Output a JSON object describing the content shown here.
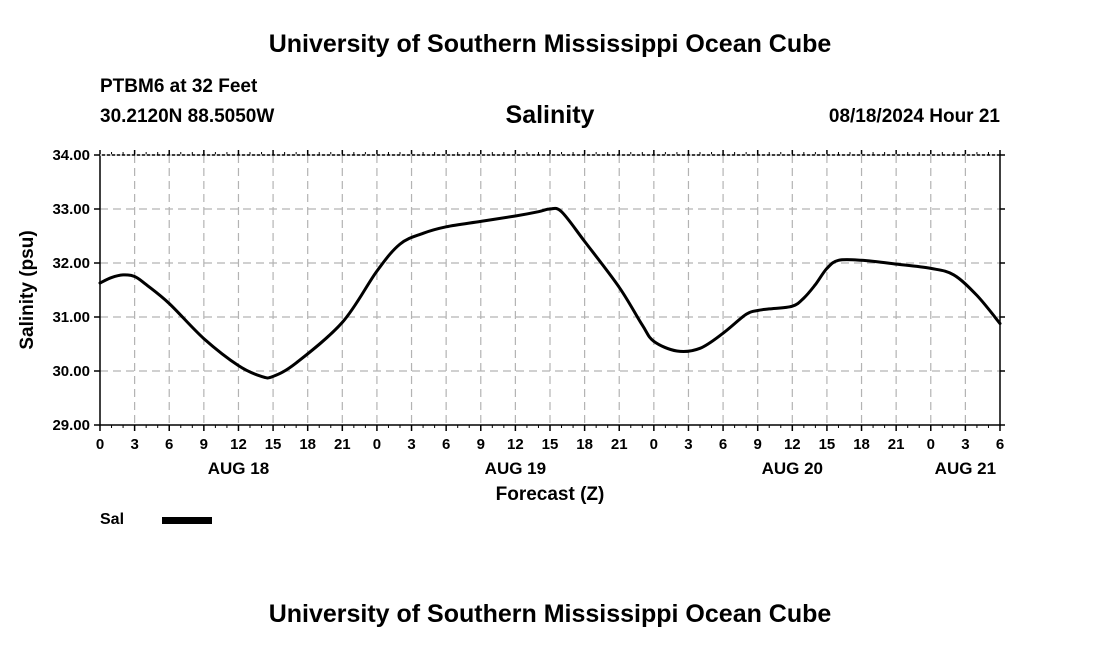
{
  "header": {
    "title": "University of Southern Mississippi Ocean Cube",
    "station": "PTBM6 at 32 Feet",
    "coordinates": "30.2120N  88.5050W",
    "date_time": "08/18/2024 Hour 21"
  },
  "footer": {
    "title": "University of Southern Mississippi Ocean Cube"
  },
  "legend": {
    "label": "Sal",
    "color": "#000000"
  },
  "chart_data": {
    "type": "line",
    "title": "Salinity",
    "xlabel": "Forecast (Z)",
    "ylabel": "Salinity (psu)",
    "ylim": [
      29,
      34
    ],
    "xlim": [
      0,
      78
    ],
    "grid": true,
    "ytick_values": [
      29,
      30,
      31,
      32,
      33,
      34
    ],
    "ytick_labels": [
      "29.00",
      "30.00",
      "31.00",
      "32.00",
      "33.00",
      "34.00"
    ],
    "xtick_labels": [
      "0",
      "3",
      "6",
      "9",
      "12",
      "15",
      "18",
      "21",
      "0",
      "3",
      "6",
      "9",
      "12",
      "15",
      "18",
      "21",
      "0",
      "3",
      "6",
      "9",
      "12",
      "15",
      "18",
      "21",
      "0",
      "3",
      "6"
    ],
    "date_labels": [
      {
        "label": "AUG 18",
        "hour": 12
      },
      {
        "label": "AUG 19",
        "hour": 36
      },
      {
        "label": "AUG 20",
        "hour": 60
      },
      {
        "label": "AUG 21",
        "hour": 75
      }
    ],
    "series": [
      {
        "name": "Sal",
        "x": [
          0,
          1,
          2,
          3,
          4,
          6,
          9,
          12,
          14,
          15,
          17,
          21,
          24,
          26,
          28,
          30,
          33,
          36,
          38,
          39,
          40,
          42,
          45,
          47,
          48,
          50,
          52,
          54,
          56,
          57,
          58,
          60,
          61,
          62,
          63,
          64,
          66,
          69,
          72,
          74,
          76,
          78
        ],
        "y": [
          31.63,
          31.73,
          31.78,
          31.75,
          31.6,
          31.25,
          30.6,
          30.1,
          29.9,
          29.9,
          30.15,
          30.9,
          31.85,
          32.35,
          32.55,
          32.67,
          32.77,
          32.87,
          32.95,
          33.0,
          32.95,
          32.4,
          31.55,
          30.85,
          30.55,
          30.37,
          30.42,
          30.7,
          31.05,
          31.12,
          31.15,
          31.2,
          31.35,
          31.6,
          31.9,
          32.05,
          32.05,
          31.98,
          31.9,
          31.78,
          31.4,
          30.88
        ]
      }
    ]
  }
}
